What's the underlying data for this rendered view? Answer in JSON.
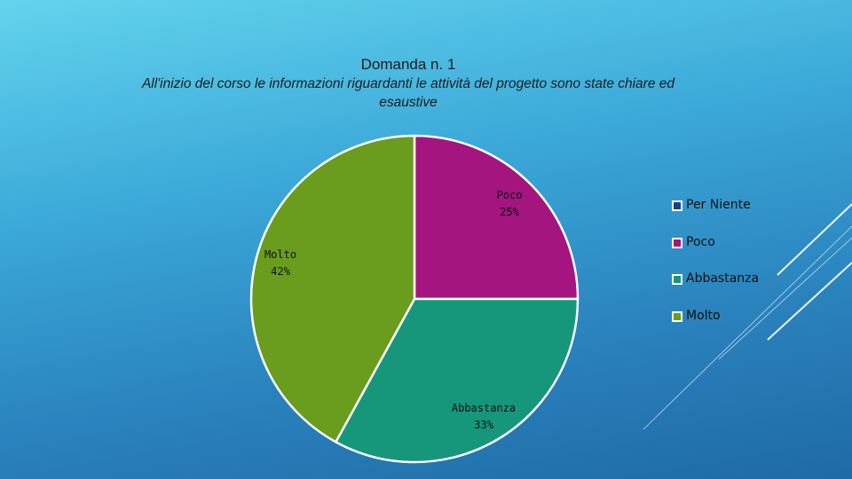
{
  "chart_data": {
    "type": "pie",
    "title": "Domanda n. 1",
    "subtitle": "All'inizio del corso le informazioni riguardanti le attività del progetto sono state chiare ed esaustive",
    "categories": [
      "Per Niente",
      "Poco",
      "Abbastanza",
      "Molto"
    ],
    "values": [
      0,
      25,
      33,
      42
    ],
    "value_unit": "%",
    "labels": [
      {
        "name": "Poco",
        "text": "25%"
      },
      {
        "name": "Abbastanza",
        "text": "33%"
      },
      {
        "name": "Molto",
        "text": "42%"
      }
    ],
    "colors": [
      "#1a3d8f",
      "#a4157f",
      "#16977b",
      "#6a9c1d"
    ],
    "legend_position": "right",
    "start_angle_deg": 0,
    "direction": "clockwise"
  },
  "theme": {
    "background_top": "#63d3ee",
    "background_bottom": "#1f6aa5",
    "slice_border": "#ffffff"
  }
}
